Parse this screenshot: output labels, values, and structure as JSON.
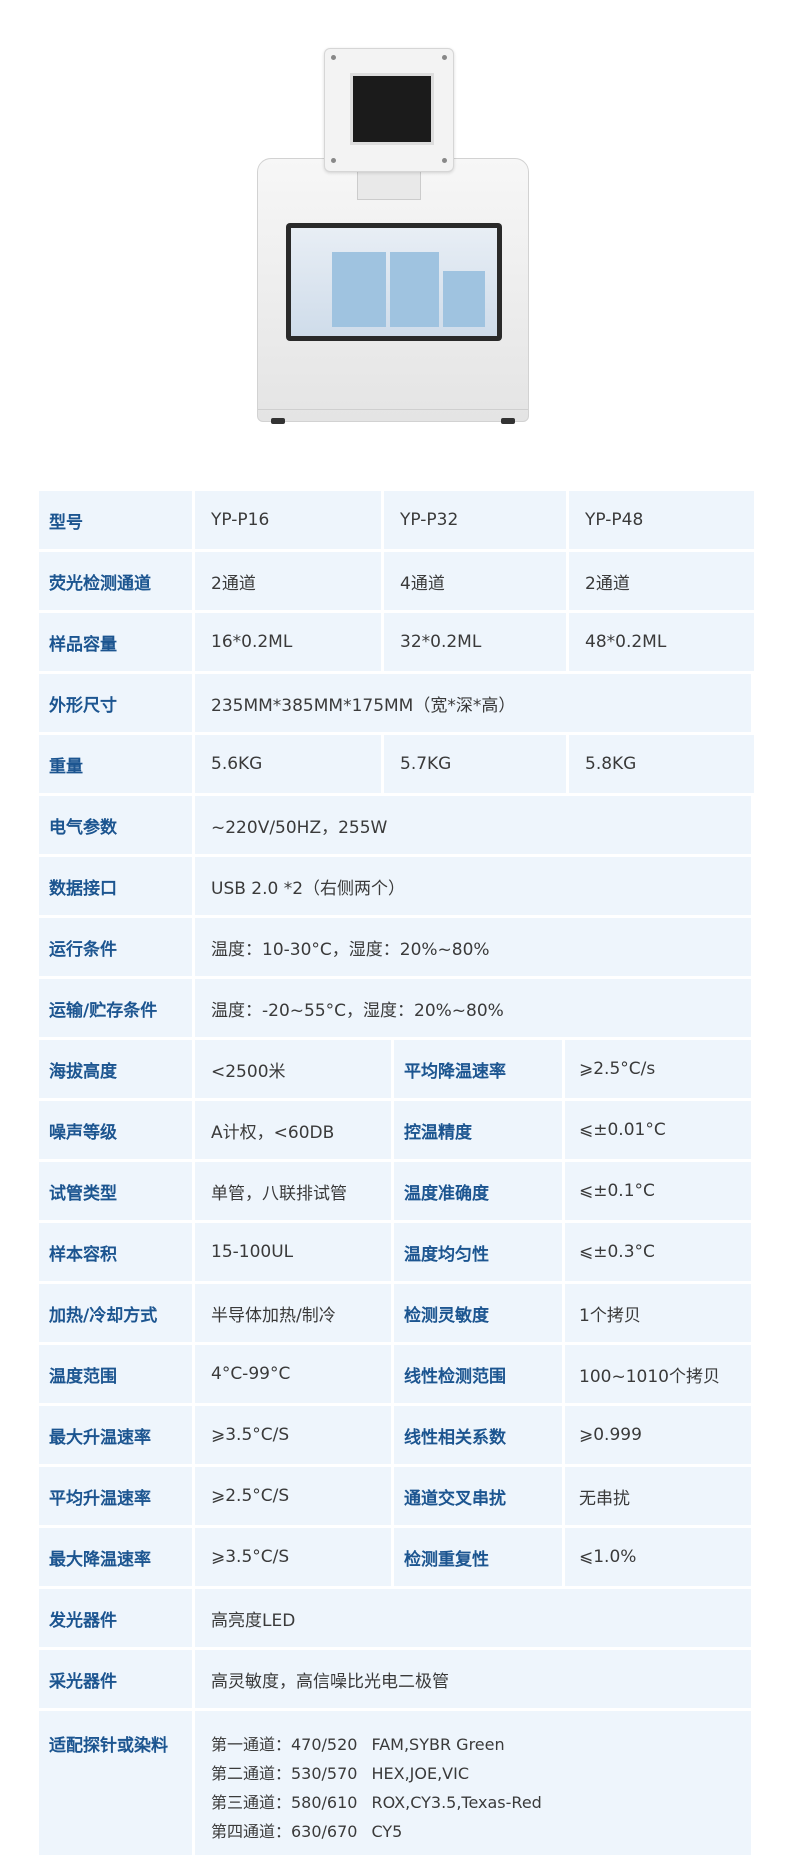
{
  "rows": [
    {
      "type": "four",
      "label": "型号",
      "values": [
        "YP-P16",
        "YP-P32",
        "YP-P48"
      ]
    },
    {
      "type": "four",
      "label": "荧光检测通道",
      "values": [
        "2通道",
        "4通道",
        "2通道"
      ]
    },
    {
      "type": "four",
      "label": "样品容量",
      "values": [
        "16*0.2ML",
        "32*0.2ML",
        "48*0.2ML"
      ]
    },
    {
      "type": "span",
      "label": "外形尺寸",
      "value": "235MM*385MM*175MM（宽*深*高）"
    },
    {
      "type": "four",
      "label": "重量",
      "values": [
        "5.6KG",
        "5.7KG",
        "5.8KG"
      ]
    },
    {
      "type": "span",
      "label": "电气参数",
      "value": "~220V/50HZ，255W"
    },
    {
      "type": "span",
      "label": "数据接口",
      "value": "USB 2.0 *2（右侧两个）"
    },
    {
      "type": "span",
      "label": "运行条件",
      "value": "温度：10-30°C，湿度：20%~80%"
    },
    {
      "type": "span",
      "label": "运输/贮存条件",
      "value": "温度：-20~55°C，湿度：20%~80%"
    },
    {
      "type": "pair",
      "label": "海拔高度",
      "value": "<2500米",
      "label2": "平均降温速率",
      "value2": "⩾2.5°C/s"
    },
    {
      "type": "pair",
      "label": "噪声等级",
      "value": "A计权，<60DB",
      "label2": "控温精度",
      "value2": "⩽±0.01°C"
    },
    {
      "type": "pair",
      "label": "试管类型",
      "value": "单管，八联排试管",
      "label2": "温度准确度",
      "value2": "⩽±0.1°C"
    },
    {
      "type": "pair",
      "label": "样本容积",
      "value": "15-100UL",
      "label2": "温度均匀性",
      "value2": "⩽±0.3°C"
    },
    {
      "type": "pair",
      "label": "加热/冷却方式",
      "value": "半导体加热/制冷",
      "label2": "检测灵敏度",
      "value2": "1个拷贝"
    },
    {
      "type": "pair",
      "label": "温度范围",
      "value": "4°C-99°C",
      "label2": "线性检测范围",
      "value2": "100~1010个拷贝"
    },
    {
      "type": "pair",
      "label": "最大升温速率",
      "value": "⩾3.5°C/S",
      "label2": "线性相关系数",
      "value2": "⩾0.999"
    },
    {
      "type": "pair",
      "label": "平均升温速率",
      "value": "⩾2.5°C/S",
      "label2": "通道交叉串扰",
      "value2": "无串扰"
    },
    {
      "type": "pair",
      "label": "最大降温速率",
      "value": "⩾3.5°C/S",
      "label2": "检测重复性",
      "value2": "⩽1.0%"
    },
    {
      "type": "span",
      "label": "发光器件",
      "value": "高亮度LED"
    },
    {
      "type": "span",
      "label": "采光器件",
      "value": "高灵敏度，高信噪比光电二极管"
    },
    {
      "type": "multi",
      "label": "适配探针或染料",
      "lines": [
        {
          "channel": "第一通道：470/520",
          "dyes": "FAM,SYBR Green"
        },
        {
          "channel": "第二通道：530/570",
          "dyes": "HEX,JOE,VIC"
        },
        {
          "channel": "第三通道：580/610",
          "dyes": "ROX,CY3.5,Texas-Red"
        },
        {
          "channel": "第四通道：630/670",
          "dyes": "CY5"
        }
      ]
    }
  ],
  "colors": {
    "label": "#1c5590",
    "cell_bg": "#eef5fc",
    "value": "#3a3a3a"
  }
}
